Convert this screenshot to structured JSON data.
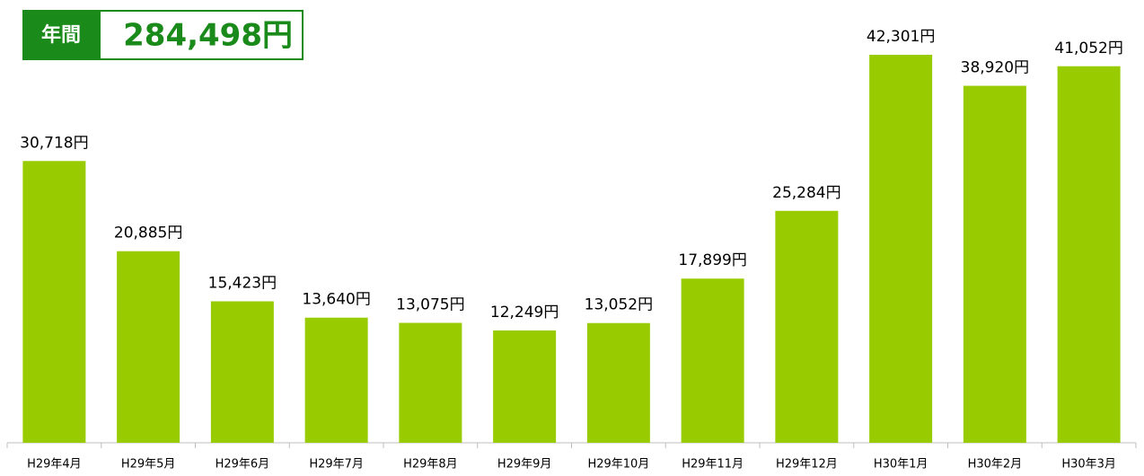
{
  "chart_data": {
    "type": "bar",
    "annual_label": "年間",
    "annual_total": "284,498円",
    "categories": [
      "H29年4月",
      "H29年5月",
      "H29年6月",
      "H29年7月",
      "H29年8月",
      "H29年9月",
      "H29年10月",
      "H29年11月",
      "H29年12月",
      "H30年1月",
      "H30年2月",
      "H30年3月"
    ],
    "values": [
      30718,
      20885,
      15423,
      13640,
      13075,
      12249,
      13052,
      17899,
      25284,
      42301,
      38920,
      41052
    ],
    "value_labels": [
      "30,718円",
      "20,885円",
      "15,423円",
      "13,640円",
      "13,075円",
      "12,249円",
      "13,052円",
      "17,899円",
      "25,284円",
      "42,301円",
      "38,920円",
      "41,052円"
    ],
    "color": "#99cc00"
  }
}
